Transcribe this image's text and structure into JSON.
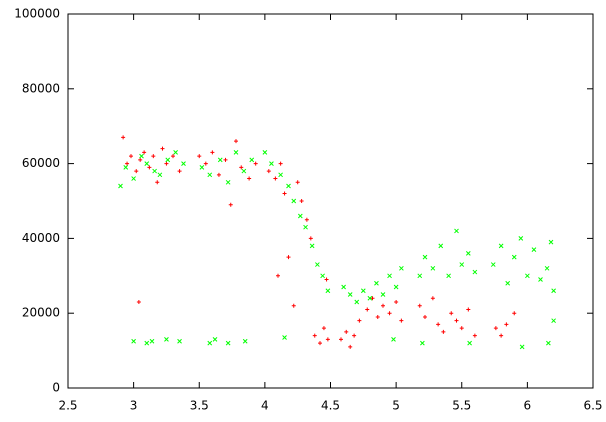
{
  "chart_data": {
    "type": "scatter",
    "xlim": [
      2.5,
      6.5
    ],
    "xticks": [
      2.5,
      3,
      3.5,
      4,
      4.5,
      5,
      5.5,
      6,
      6.5
    ],
    "ylim": [
      0,
      100000
    ],
    "yticks": [
      0,
      20000,
      40000,
      60000,
      80000,
      100000
    ],
    "series": [
      {
        "color": "#ff0000",
        "marker": "plus",
        "x": [
          2.92,
          2.95,
          2.98,
          3.02,
          3.05,
          3.08,
          3.12,
          3.15,
          3.18,
          3.22,
          3.25,
          3.3,
          3.35,
          3.04,
          3.5,
          3.55,
          3.6,
          3.65,
          3.7,
          3.74,
          3.78,
          3.82,
          3.88,
          3.93,
          4.03,
          4.08,
          4.12,
          4.15,
          4.1,
          4.18,
          4.22,
          4.25,
          4.28,
          4.32,
          4.35,
          4.38,
          4.42,
          4.45,
          4.48,
          4.47,
          4.58,
          4.62,
          4.65,
          4.68,
          4.72,
          4.78,
          4.82,
          4.86,
          4.9,
          4.95,
          5.0,
          5.04,
          5.18,
          5.22,
          5.28,
          5.32,
          5.36,
          5.42,
          5.46,
          5.5,
          5.55,
          5.6,
          5.76,
          5.8,
          5.84,
          5.9
        ],
        "values": [
          67000,
          60000,
          62000,
          58000,
          61000,
          63000,
          59000,
          62000,
          55000,
          64000,
          60000,
          62000,
          58000,
          23000,
          62000,
          60000,
          63000,
          57000,
          61000,
          49000,
          66000,
          59000,
          56000,
          60000,
          58000,
          56000,
          60000,
          52000,
          30000,
          35000,
          22000,
          55000,
          50000,
          45000,
          40000,
          14000,
          12000,
          16000,
          13000,
          29000,
          13000,
          15000,
          11000,
          14000,
          18000,
          21000,
          24000,
          19000,
          22000,
          20000,
          23000,
          18000,
          22000,
          19000,
          24000,
          17000,
          15000,
          20000,
          18000,
          16000,
          21000,
          14000,
          16000,
          14000,
          17000,
          20000
        ]
      },
      {
        "color": "#00ff00",
        "marker": "cross",
        "x": [
          2.9,
          2.94,
          3.0,
          3.06,
          3.1,
          3.16,
          3.2,
          3.26,
          3.32,
          3.38,
          3.0,
          3.1,
          3.14,
          3.25,
          3.35,
          3.58,
          3.62,
          3.72,
          3.85,
          3.52,
          3.58,
          3.66,
          3.72,
          3.78,
          3.84,
          3.9,
          4.0,
          4.05,
          4.12,
          4.18,
          4.22,
          4.27,
          4.31,
          4.36,
          4.4,
          4.44,
          4.48,
          4.15,
          4.6,
          4.65,
          4.7,
          4.75,
          4.8,
          4.85,
          4.9,
          4.95,
          5.0,
          5.04,
          4.98,
          5.18,
          5.22,
          5.28,
          5.34,
          5.4,
          5.46,
          5.5,
          5.55,
          5.6,
          5.2,
          5.56,
          5.74,
          5.8,
          5.85,
          5.9,
          5.95,
          6.0,
          6.05,
          6.1,
          6.15,
          6.2,
          6.18,
          5.96,
          6.16,
          6.2
        ],
        "values": [
          54000,
          59000,
          56000,
          62000,
          60000,
          58000,
          57000,
          61000,
          63000,
          60000,
          12500,
          12000,
          12500,
          13000,
          12500,
          12000,
          13000,
          12000,
          12500,
          59000,
          57000,
          61000,
          55000,
          63000,
          58000,
          61000,
          63000,
          60000,
          57000,
          54000,
          50000,
          46000,
          43000,
          38000,
          33000,
          30000,
          26000,
          13500,
          27000,
          25000,
          23000,
          26000,
          24000,
          28000,
          25000,
          30000,
          27000,
          32000,
          13000,
          30000,
          35000,
          32000,
          38000,
          30000,
          42000,
          33000,
          36000,
          31000,
          12000,
          12000,
          33000,
          38000,
          28000,
          35000,
          40000,
          30000,
          37000,
          29000,
          32000,
          26000,
          39000,
          11000,
          12000,
          18000
        ]
      }
    ]
  }
}
